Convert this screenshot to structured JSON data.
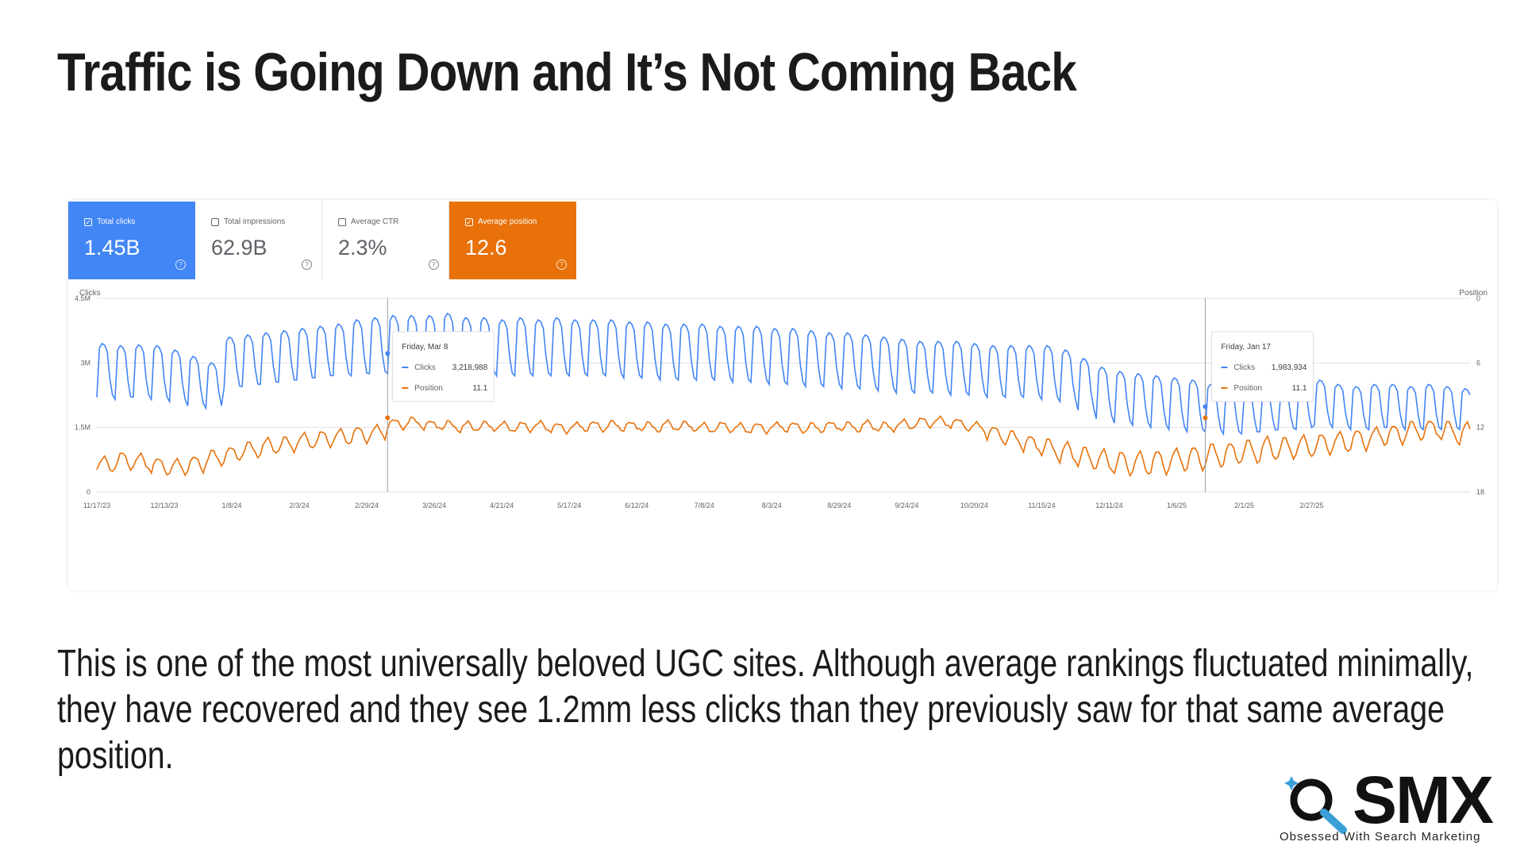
{
  "title": "Traffic is Going Down and It’s Not Coming Back",
  "body_text": "This is one of the most universally beloved UGC sites. Although average rankings fluctuated minimally, they have recovered and they see 1.2mm less clicks than they previously saw for that same average position.",
  "logo": {
    "word": "SMX",
    "tagline": "Obsessed With Search Marketing"
  },
  "colors": {
    "clicks": "#4285f4",
    "position": "#e8710a",
    "grid": "#e0e0e0"
  },
  "metrics": [
    {
      "label": "Total clicks",
      "value": "1.45B",
      "checked": true,
      "style": "active-blue"
    },
    {
      "label": "Total impressions",
      "value": "62.9B",
      "checked": false,
      "style": ""
    },
    {
      "label": "Average CTR",
      "value": "2.3%",
      "checked": false,
      "style": ""
    },
    {
      "label": "Average position",
      "value": "12.6",
      "checked": true,
      "style": "active-orange"
    }
  ],
  "chart_data": {
    "type": "line",
    "left_axis": {
      "title": "Clicks",
      "ticks": [
        "0",
        "1.5M",
        "3M",
        "4.5M"
      ],
      "range": [
        0,
        4500000
      ]
    },
    "right_axis": {
      "title": "Position",
      "ticks": [
        "0",
        "6",
        "12",
        "18"
      ],
      "range": [
        0,
        18
      ],
      "inverted": true
    },
    "x_ticks": [
      "11/17/23",
      "12/13/23",
      "1/8/24",
      "2/3/24",
      "2/29/24",
      "3/26/24",
      "4/21/24",
      "5/17/24",
      "6/12/24",
      "7/8/24",
      "8/3/24",
      "8/29/24",
      "9/24/24",
      "10/20/24",
      "11/15/24",
      "12/11/24",
      "1/6/25",
      "2/1/25",
      "2/27/25"
    ],
    "span_days": 530,
    "series": [
      {
        "name": "Clicks",
        "axis": "left",
        "weekly_peaks": [
          3450000,
          3400000,
          3420000,
          3400000,
          3300000,
          3150000,
          3000000,
          3600000,
          3650000,
          3700000,
          3750000,
          3800000,
          3850000,
          3900000,
          4000000,
          4050000,
          4100000,
          4100000,
          4100000,
          4150000,
          4050000,
          4050000,
          4000000,
          4050000,
          4000000,
          4050000,
          4000000,
          4000000,
          4000000,
          3950000,
          3950000,
          3900000,
          3900000,
          3900000,
          3850000,
          3850000,
          3850000,
          3800000,
          3800000,
          3750000,
          3700000,
          3700000,
          3650000,
          3600000,
          3550000,
          3500000,
          3500000,
          3500000,
          3450000,
          3400000,
          3400000,
          3400000,
          3400000,
          3300000,
          3100000,
          2900000,
          2800000,
          2750000,
          2700000,
          2650000,
          2600000,
          2500000,
          2400000,
          2300000,
          2250000,
          2300000,
          2400000,
          2600000,
          2500000,
          2450000,
          2500000,
          2500000,
          2450000,
          2500000,
          2450000,
          2400000,
          2450000
        ],
        "weekly_troughs": [
          2200000,
          2150000,
          2200000,
          2150000,
          2100000,
          2000000,
          1950000,
          2400000,
          2450000,
          2500000,
          2550000,
          2600000,
          2650000,
          2700000,
          2700000,
          2750000,
          2750000,
          2800000,
          2800000,
          2800000,
          2750000,
          2750000,
          2700000,
          2700000,
          2700000,
          2700000,
          2700000,
          2700000,
          2700000,
          2650000,
          2650000,
          2600000,
          2600000,
          2600000,
          2600000,
          2550000,
          2550000,
          2500000,
          2500000,
          2450000,
          2450000,
          2400000,
          2400000,
          2350000,
          2300000,
          2300000,
          2300000,
          2250000,
          2250000,
          2200000,
          2200000,
          2200000,
          2150000,
          2100000,
          1900000,
          1700000,
          1600000,
          1550000,
          1500000,
          1450000,
          1400000,
          1400000,
          1350000,
          1350000,
          1400000,
          1450000,
          1450000,
          1550000,
          1500000,
          1450000,
          1450000,
          1500000,
          1450000,
          1450000,
          1450000,
          1450000,
          1500000
        ]
      },
      {
        "name": "Position",
        "axis": "right",
        "weekly_avg": [
          15.2,
          14.8,
          14.9,
          15.3,
          15.4,
          15.1,
          14.6,
          14.2,
          13.8,
          13.5,
          13.3,
          13.0,
          12.8,
          12.6,
          12.4,
          12.2,
          11.5,
          11.4,
          11.6,
          11.7,
          11.8,
          11.7,
          11.8,
          11.8,
          11.7,
          11.9,
          11.8,
          11.7,
          11.7,
          11.7,
          11.8,
          11.7,
          11.7,
          11.9,
          11.8,
          11.9,
          11.9,
          11.8,
          11.8,
          11.9,
          11.7,
          11.8,
          11.7,
          11.8,
          11.6,
          11.4,
          11.3,
          11.5,
          11.8,
          12.3,
          12.8,
          13.2,
          13.6,
          14.0,
          14.4,
          14.7,
          14.9,
          14.9,
          14.8,
          14.6,
          14.4,
          14.2,
          14.0,
          13.8,
          13.6,
          13.5,
          13.4,
          13.2,
          13.0,
          12.8,
          12.5,
          12.3,
          12.0,
          11.8,
          12.0,
          12.2,
          12.4
        ],
        "weekly_amp": [
          1.0,
          1.1,
          1.0,
          1.0,
          1.1,
          1.0,
          1.0,
          1.0,
          1.0,
          1.0,
          1.0,
          1.0,
          1.0,
          1.0,
          1.0,
          1.0,
          0.6,
          0.6,
          0.6,
          0.6,
          0.6,
          0.6,
          0.6,
          0.6,
          0.6,
          0.6,
          0.6,
          0.6,
          0.6,
          0.6,
          0.6,
          0.6,
          0.6,
          0.6,
          0.6,
          0.6,
          0.6,
          0.6,
          0.6,
          0.6,
          0.6,
          0.6,
          0.6,
          0.6,
          0.6,
          0.6,
          0.6,
          0.6,
          0.7,
          0.9,
          1.0,
          1.1,
          1.2,
          1.3,
          1.4,
          1.4,
          1.5,
          1.5,
          1.5,
          1.5,
          1.5,
          1.5,
          1.5,
          1.5,
          1.5,
          1.4,
          1.4,
          1.3,
          1.3,
          1.3,
          1.2,
          1.2,
          1.2,
          1.2,
          1.3,
          1.4,
          1.4
        ]
      }
    ],
    "tooltips": [
      {
        "date": "Friday, Mar 8",
        "day_index": 112,
        "clicks_label": "Clicks",
        "clicks_value": "3,218,988",
        "position_label": "Position",
        "position_value": "11.1",
        "clicks_num": 3218988,
        "position_num": 11.1
      },
      {
        "date": "Friday, Jan 17",
        "day_index": 427,
        "clicks_label": "Clicks",
        "clicks_value": "1,983,934",
        "position_label": "Position",
        "position_value": "11.1",
        "clicks_num": 1983934,
        "position_num": 11.1
      }
    ]
  }
}
